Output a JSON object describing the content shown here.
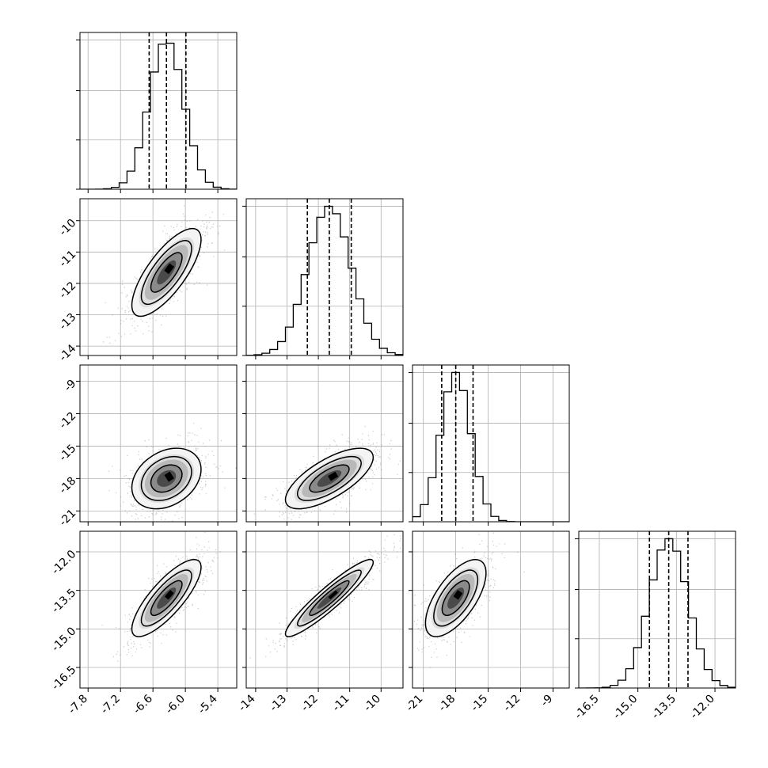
{
  "chart_data": {
    "type": "corner",
    "title": "",
    "parameters": [
      {
        "index": 0,
        "range": [
          -7.95,
          -5.05
        ],
        "ticks": [
          "-7.8",
          "-7.2",
          "-6.6",
          "-6.0",
          "-5.4"
        ],
        "tick_values": [
          -7.8,
          -7.2,
          -6.6,
          -6.0,
          -5.4
        ],
        "quantiles": [
          -6.67,
          -6.35,
          -5.99
        ],
        "mean": -6.35,
        "sd": 0.32
      },
      {
        "index": 1,
        "range": [
          -14.3,
          -9.3
        ],
        "ticks": [
          "-14",
          "-13",
          "-12",
          "-11",
          "-10"
        ],
        "tick_values": [
          -14,
          -13,
          -12,
          -11,
          -10
        ],
        "quantiles": [
          -12.35,
          -11.65,
          -10.95
        ],
        "mean": -11.65,
        "sd": 0.7
      },
      {
        "index": 2,
        "range": [
          -22.0,
          -7.5
        ],
        "ticks": [
          "-21",
          "-18",
          "-15",
          "-12",
          "-9"
        ],
        "tick_values": [
          -21,
          -18,
          -15,
          -12,
          -9
        ],
        "quantiles": [
          -19.3,
          -18.0,
          -16.4
        ],
        "mean": -18.0,
        "sd": 1.4
      },
      {
        "index": 3,
        "range": [
          -17.3,
          -11.2
        ],
        "ticks": [
          "-16.5",
          "-15.0",
          "-13.5",
          "-12.0"
        ],
        "tick_values": [
          -16.5,
          -15.0,
          -13.5,
          -12.0
        ],
        "quantiles": [
          -14.55,
          -13.8,
          -13.05
        ],
        "mean": -13.8,
        "sd": 0.75
      }
    ],
    "correlations": {
      "1-0": 0.75,
      "2-0": 0.3,
      "2-1": 0.7,
      "3-0": 0.8,
      "3-1": 0.93,
      "3-2": 0.65
    },
    "histogram_bins": 20,
    "quantile_line_style": "dashed",
    "grid": true,
    "scatter_color": "#888888",
    "contour_color": "#000000",
    "legend": "none"
  }
}
